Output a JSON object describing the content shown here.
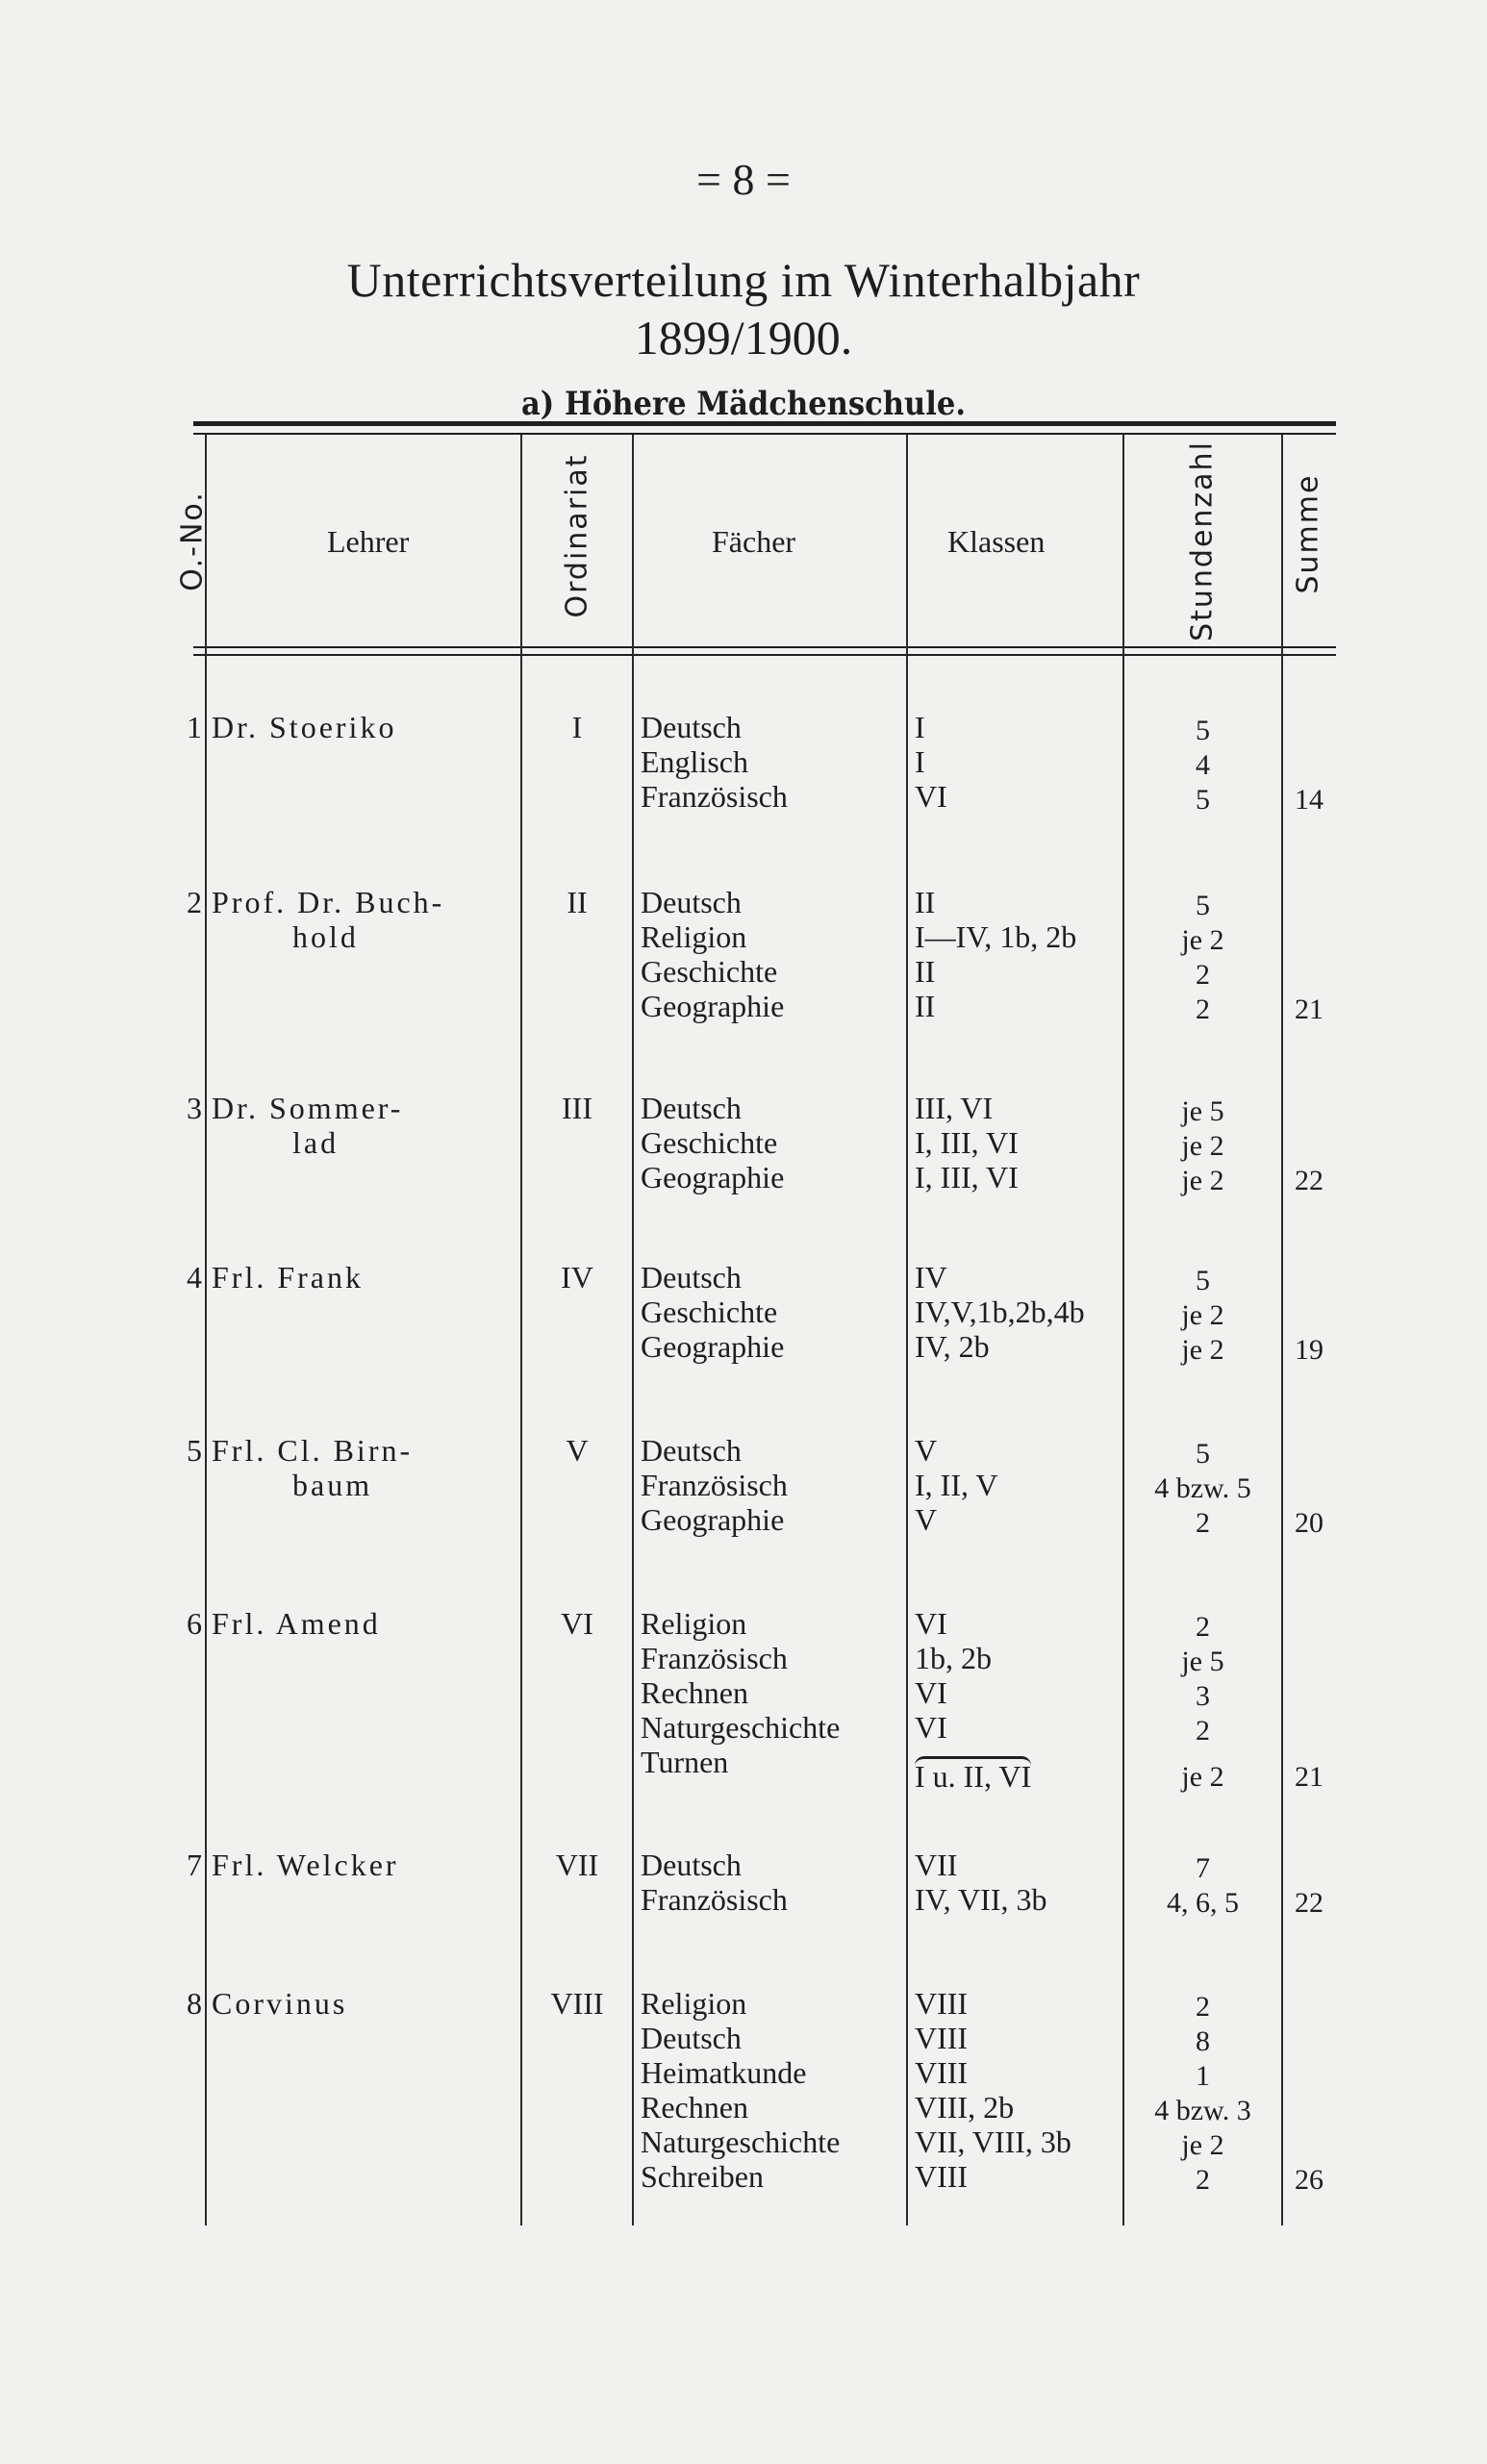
{
  "page_number": "= 8 =",
  "title": "Unterrichtsverteilung im Winterhalbjahr",
  "year": "1899/1900.",
  "subtitle": "a) Höhere Mädchenschule.",
  "headers": {
    "no": "O.-No.",
    "lehrer": "Lehrer",
    "ordinariat": "Ordinariat",
    "faecher": "Fächer",
    "klassen": "Klassen",
    "stundenzahl": "Stundenzahl",
    "summe": "Summe"
  },
  "rows": [
    {
      "no": "1",
      "teacher": [
        "Dr. Stoeriko"
      ],
      "ordinariat": "I",
      "subjects": [
        {
          "fach": "Deutsch",
          "klassen": "I",
          "stunden": "5"
        },
        {
          "fach": "Englisch",
          "klassen": "I",
          "stunden": "4"
        },
        {
          "fach": "Französisch",
          "klassen": "VI",
          "stunden": "5"
        }
      ],
      "summe": "14"
    },
    {
      "no": "2",
      "teacher": [
        "Prof. Dr. Buch-",
        "hold"
      ],
      "ordinariat": "II",
      "subjects": [
        {
          "fach": "Deutsch",
          "klassen": "II",
          "stunden": "5"
        },
        {
          "fach": "Religion",
          "klassen": "I—IV, 1b, 2b",
          "stunden": "je 2"
        },
        {
          "fach": "Geschichte",
          "klassen": "II",
          "stunden": "2"
        },
        {
          "fach": "Geographie",
          "klassen": "II",
          "stunden": "2"
        }
      ],
      "summe": "21"
    },
    {
      "no": "3",
      "teacher": [
        "Dr. Sommer-",
        "lad"
      ],
      "ordinariat": "III",
      "subjects": [
        {
          "fach": "Deutsch",
          "klassen": "III, VI",
          "stunden": "je 5"
        },
        {
          "fach": "Geschichte",
          "klassen": "I, III, VI",
          "stunden": "je 2"
        },
        {
          "fach": "Geographie",
          "klassen": "I, III, VI",
          "stunden": "je 2"
        }
      ],
      "summe": "22"
    },
    {
      "no": "4",
      "teacher": [
        "Frl. Frank"
      ],
      "ordinariat": "IV",
      "subjects": [
        {
          "fach": "Deutsch",
          "klassen": "IV",
          "stunden": "5"
        },
        {
          "fach": "Geschichte",
          "klassen": "IV,V,1b,2b,4b",
          "stunden": "je 2"
        },
        {
          "fach": "Geographie",
          "klassen": "IV, 2b",
          "stunden": "je 2"
        }
      ],
      "summe": "19"
    },
    {
      "no": "5",
      "teacher": [
        "Frl. Cl. Birn-",
        "baum"
      ],
      "ordinariat": "V",
      "subjects": [
        {
          "fach": "Deutsch",
          "klassen": "V",
          "stunden": "5"
        },
        {
          "fach": "Französisch",
          "klassen": "I, II, V",
          "stunden": "4 bzw. 5"
        },
        {
          "fach": "Geographie",
          "klassen": "V",
          "stunden": "2"
        }
      ],
      "summe": "20"
    },
    {
      "no": "6",
      "teacher": [
        "Frl. Amend"
      ],
      "ordinariat": "VI",
      "subjects": [
        {
          "fach": "Religion",
          "klassen": "VI",
          "stunden": "2"
        },
        {
          "fach": "Französisch",
          "klassen": "1b, 2b",
          "stunden": "je 5"
        },
        {
          "fach": "Rechnen",
          "klassen": "VI",
          "stunden": "3"
        },
        {
          "fach": "Naturgeschichte",
          "klassen": "VI",
          "stunden": "2"
        },
        {
          "fach": "Turnen",
          "klassen": "I u. II, VI",
          "stunden": "je 2"
        }
      ],
      "summe": "21"
    },
    {
      "no": "7",
      "teacher": [
        "Frl. Welcker"
      ],
      "ordinariat": "VII",
      "subjects": [
        {
          "fach": "Deutsch",
          "klassen": "VII",
          "stunden": "7"
        },
        {
          "fach": "Französisch",
          "klassen": "IV, VII, 3b",
          "stunden": "4, 6, 5"
        }
      ],
      "summe": "22"
    },
    {
      "no": "8",
      "teacher": [
        "Corvinus"
      ],
      "ordinariat": "VIII",
      "subjects": [
        {
          "fach": "Religion",
          "klassen": "VIII",
          "stunden": "2"
        },
        {
          "fach": "Deutsch",
          "klassen": "VIII",
          "stunden": "8"
        },
        {
          "fach": "Heimatkunde",
          "klassen": "VIII",
          "stunden": "1"
        },
        {
          "fach": "Rechnen",
          "klassen": "VIII, 2b",
          "stunden": "4 bzw. 3"
        },
        {
          "fach": "Naturgeschichte",
          "klassen": "VII, VIII, 3b",
          "stunden": "je 2"
        },
        {
          "fach": "Schreiben",
          "klassen": "VIII",
          "stunden": "2"
        }
      ],
      "summe": "26"
    }
  ]
}
